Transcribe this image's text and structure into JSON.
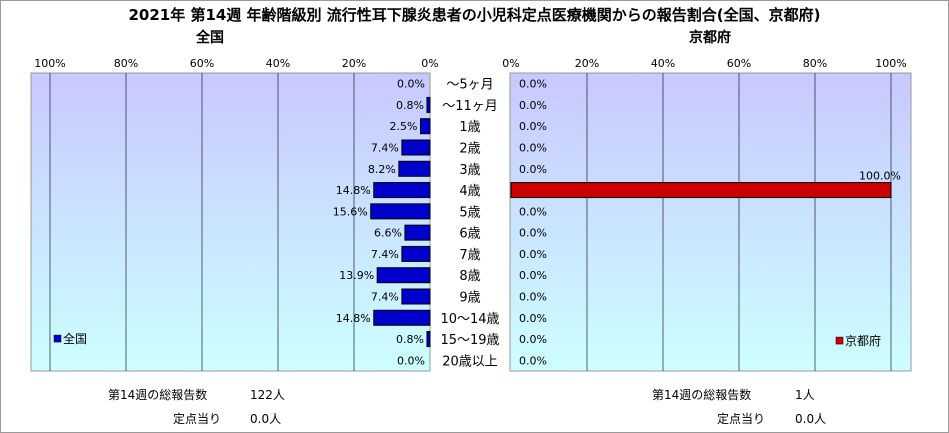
{
  "title": "2021年 第14週 年齢階級別 流行性耳下腺炎患者の小児科定点医療機関からの報告割合(全国、京都府)",
  "chart_data": [
    {
      "type": "bar",
      "orientation": "horizontal",
      "direction": "right-to-left",
      "title": "全国",
      "legend": "全国",
      "legend_position": "bottom-left",
      "color": "#0000cc",
      "axis_range": [
        0,
        100
      ],
      "tick_labels": [
        "100%",
        "80%",
        "60%",
        "40%",
        "20%",
        "0%"
      ],
      "categories": [
        "～5ヶ月",
        "～11ヶ月",
        "1歳",
        "2歳",
        "3歳",
        "4歳",
        "5歳",
        "6歳",
        "7歳",
        "8歳",
        "9歳",
        "10～14歳",
        "15～19歳",
        "20歳以上"
      ],
      "values": [
        0.0,
        0.8,
        2.5,
        7.4,
        8.2,
        14.8,
        15.6,
        6.6,
        7.4,
        13.9,
        7.4,
        14.8,
        0.8,
        0.0
      ],
      "value_labels": [
        "0.0%",
        "0.8%",
        "2.5%",
        "7.4%",
        "8.2%",
        "14.8%",
        "15.6%",
        "6.6%",
        "7.4%",
        "13.9%",
        "7.4%",
        "14.8%",
        "0.8%",
        "0.0%"
      ],
      "grid": true
    },
    {
      "type": "bar",
      "orientation": "horizontal",
      "direction": "left-to-right",
      "title": "京都府",
      "legend": "京都府",
      "legend_position": "bottom-right",
      "color": "#cc0000",
      "axis_range": [
        0,
        100
      ],
      "tick_labels": [
        "0%",
        "20%",
        "40%",
        "60%",
        "80%",
        "100%"
      ],
      "categories": [
        "～5ヶ月",
        "～11ヶ月",
        "1歳",
        "2歳",
        "3歳",
        "4歳",
        "5歳",
        "6歳",
        "7歳",
        "8歳",
        "9歳",
        "10～14歳",
        "15～19歳",
        "20歳以上"
      ],
      "values": [
        0.0,
        0.0,
        0.0,
        0.0,
        0.0,
        100.0,
        0.0,
        0.0,
        0.0,
        0.0,
        0.0,
        0.0,
        0.0,
        0.0
      ],
      "value_labels": [
        "0.0%",
        "0.0%",
        "0.0%",
        "0.0%",
        "0.0%",
        "100.0%",
        "0.0%",
        "0.0%",
        "0.0%",
        "0.0%",
        "0.0%",
        "0.0%",
        "0.0%",
        "0.0%"
      ],
      "grid": true
    }
  ],
  "stats": {
    "national": {
      "total_label": "第14週の総報告数",
      "total_value": "122人",
      "per_label": "定点当り",
      "per_value": "0.0人"
    },
    "kyoto": {
      "total_label": "第14週の総報告数",
      "total_value": "1人",
      "per_label": "定点当り",
      "per_value": "0.0人"
    }
  }
}
